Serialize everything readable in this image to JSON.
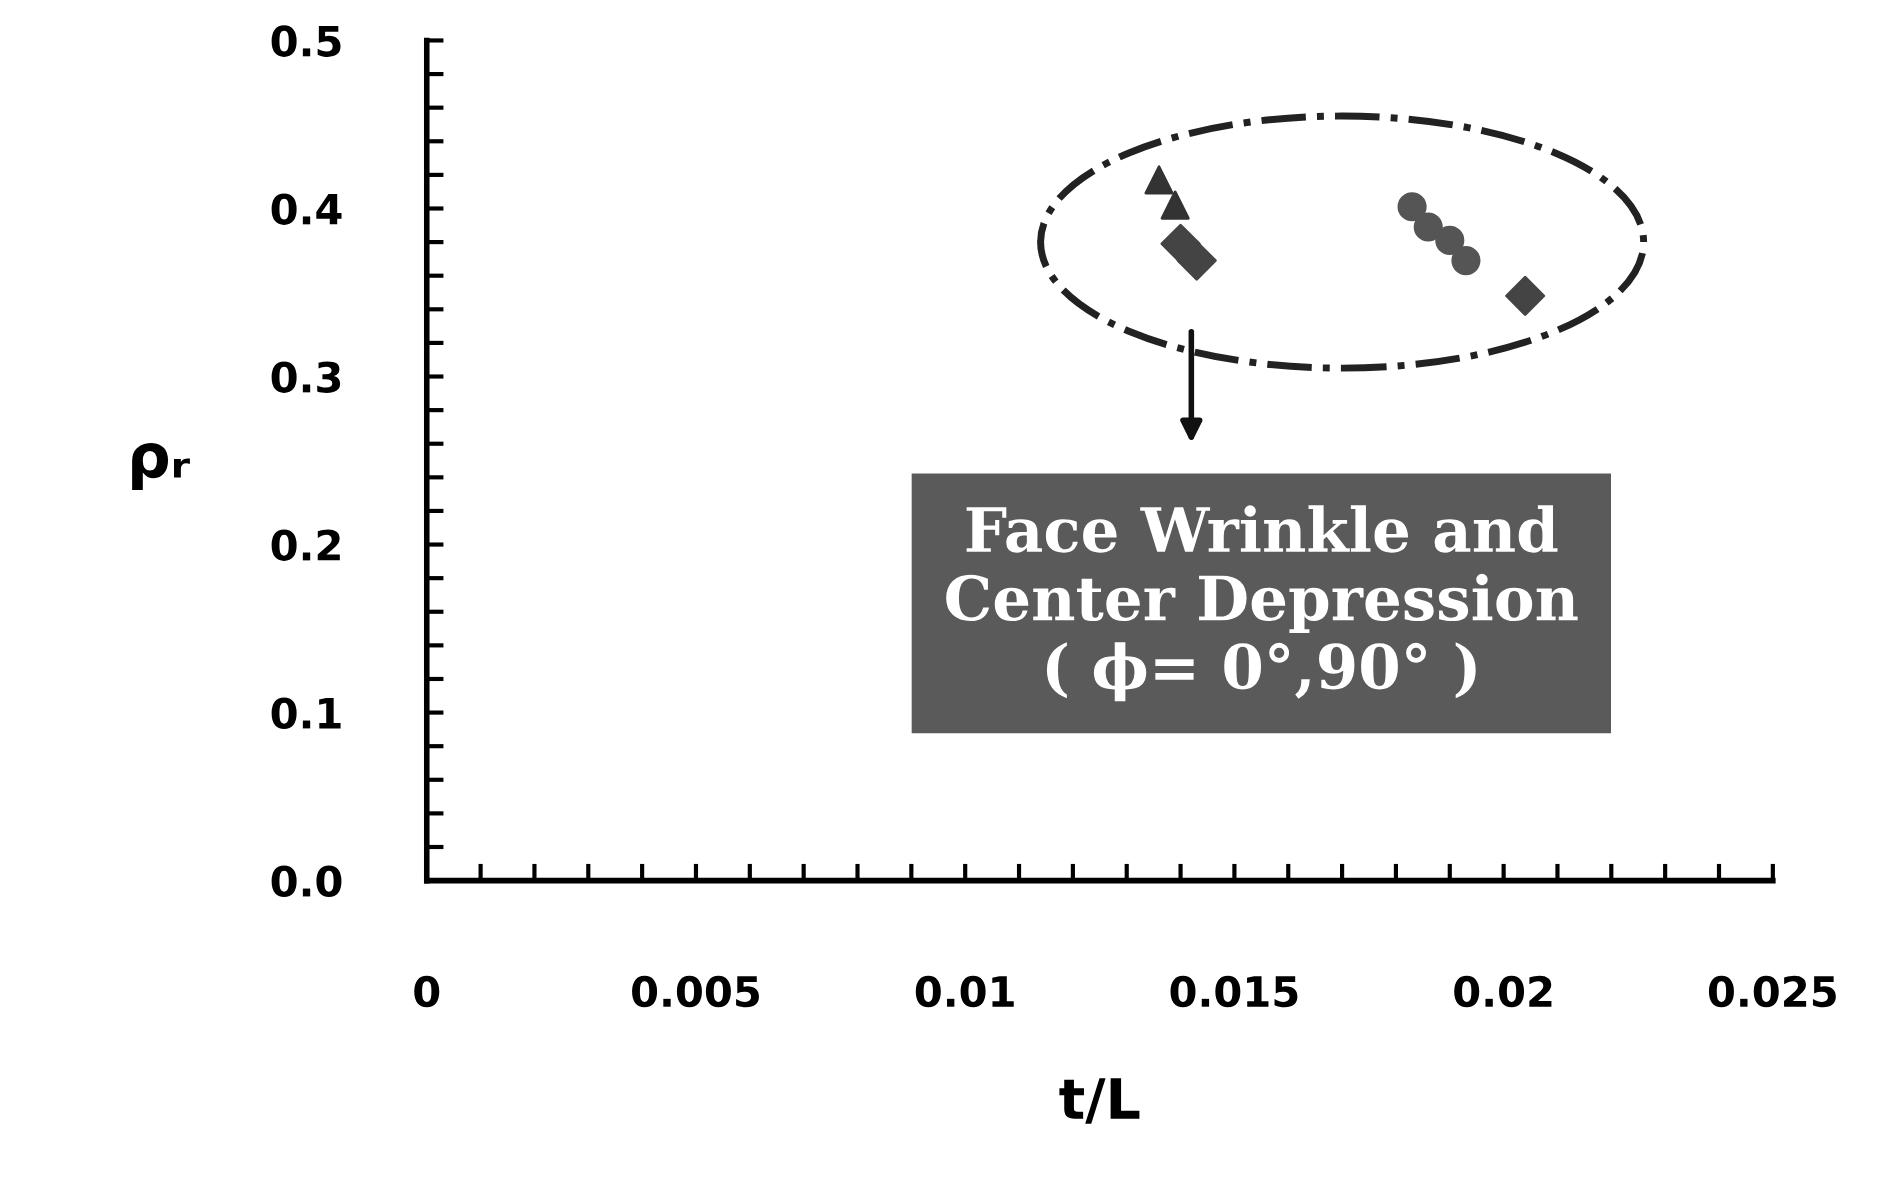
{
  "chart_data": {
    "type": "scatter",
    "xlabel": "t/L",
    "ylabel": "ρᵣ",
    "series": [
      {
        "color": "#333333",
        "marker": "triangle",
        "x": [
          0.0136,
          0.0139
        ],
        "values": [
          0.417,
          0.402
        ]
      },
      {
        "color": "#444444",
        "marker": "diamond",
        "x": [
          0.014,
          0.0143,
          0.0204
        ],
        "values": [
          0.379,
          0.369,
          0.348
        ]
      },
      {
        "color": "#555555",
        "marker": "circle",
        "x": [
          0.0183,
          0.0186,
          0.019,
          0.0193
        ],
        "values": [
          0.401,
          0.389,
          0.381,
          0.369
        ]
      }
    ],
    "xlim": [
      0,
      0.025
    ],
    "ylim": [
      0,
      0.5
    ],
    "xticks": [
      0,
      {
        "value": 0.001,
        "label": null
      },
      {
        "value": 0.002,
        "label": null
      },
      {
        "value": 0.003,
        "label": null
      },
      {
        "value": 0.004,
        "label": null
      },
      0.005,
      {
        "value": 0.006,
        "label": null
      },
      {
        "value": 0.007,
        "label": null
      },
      {
        "value": 0.008,
        "label": null
      },
      {
        "value": 0.009,
        "label": null
      },
      0.01,
      {
        "value": 0.011,
        "label": null
      },
      {
        "value": 0.012,
        "label": null
      },
      {
        "value": 0.013,
        "label": null
      },
      {
        "value": 0.014,
        "label": null
      },
      0.015,
      {
        "value": 0.016,
        "label": null
      },
      {
        "value": 0.017,
        "label": null
      },
      {
        "value": 0.018,
        "label": null
      },
      {
        "value": 0.019,
        "label": null
      },
      0.02,
      {
        "value": 0.021,
        "label": null
      },
      {
        "value": 0.022,
        "label": null
      },
      {
        "value": 0.023,
        "label": null
      },
      {
        "value": 0.024,
        "label": null
      },
      0.025
    ],
    "yticks": [
      {
        "value": 0,
        "label": "0.0"
      },
      {
        "value": 0.02,
        "label": null
      },
      {
        "value": 0.04,
        "label": null
      },
      {
        "value": 0.06,
        "label": null
      },
      {
        "value": 0.08,
        "label": null
      },
      0.1,
      {
        "value": 0.12,
        "label": null
      },
      {
        "value": 0.14,
        "label": null
      },
      {
        "value": 0.16,
        "label": null
      },
      {
        "value": 0.18,
        "label": null
      },
      0.2,
      {
        "value": 0.22,
        "label": null
      },
      {
        "value": 0.24,
        "label": null
      },
      {
        "value": 0.26,
        "label": null
      },
      {
        "value": 0.28,
        "label": null
      },
      0.3,
      {
        "value": 0.32,
        "label": null
      },
      {
        "value": 0.34,
        "label": null
      },
      {
        "value": 0.36,
        "label": null
      },
      {
        "value": 0.38,
        "label": null
      },
      0.4,
      {
        "value": 0.42,
        "label": null
      },
      {
        "value": 0.44,
        "label": null
      },
      {
        "value": 0.46,
        "label": null
      },
      {
        "value": 0.48,
        "label": null
      },
      0.5
    ],
    "grid": false,
    "legend": false,
    "annotations": [
      "Face Wrinkle and\nCenter Depression\n( ϕ= 0°,90° )"
    ]
  }
}
